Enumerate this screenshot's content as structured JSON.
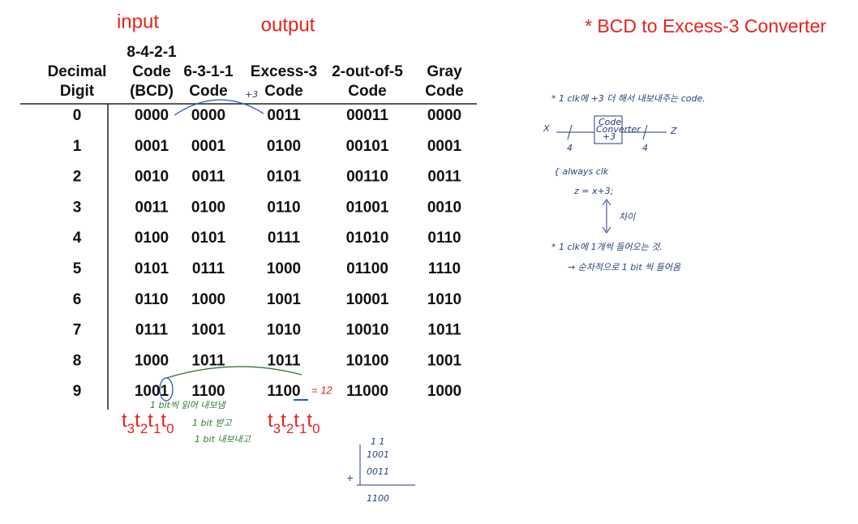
{
  "labels": {
    "input": "input",
    "output": "output"
  },
  "title": "* BCD to Excess-3 Converter",
  "table": {
    "headers": [
      [
        "Decimal",
        "Digit"
      ],
      [
        "8-4-2-1",
        "Code",
        "(BCD)"
      ],
      [
        "6-3-1-1",
        "Code"
      ],
      [
        "Excess-3",
        "Code"
      ],
      [
        "2-out-of-5",
        "Code"
      ],
      [
        "Gray",
        "Code"
      ]
    ],
    "rows": [
      [
        "0",
        "0000",
        "0000",
        "0011",
        "00011",
        "0000"
      ],
      [
        "1",
        "0001",
        "0001",
        "0100",
        "00101",
        "0001"
      ],
      [
        "2",
        "0010",
        "0011",
        "0101",
        "00110",
        "0011"
      ],
      [
        "3",
        "0011",
        "0100",
        "0110",
        "01001",
        "0010"
      ],
      [
        "4",
        "0100",
        "0101",
        "0111",
        "01010",
        "0110"
      ],
      [
        "5",
        "0101",
        "0111",
        "1000",
        "01100",
        "1110"
      ],
      [
        "6",
        "0110",
        "1000",
        "1001",
        "10001",
        "1010"
      ],
      [
        "7",
        "0111",
        "1001",
        "1010",
        "10010",
        "1011"
      ],
      [
        "8",
        "1000",
        "1011",
        "1011",
        "10100",
        "1001"
      ],
      [
        "9",
        "1001",
        "1100",
        "1100",
        "11000",
        "1000"
      ]
    ]
  },
  "bit_label": [
    {
      "base": "t",
      "sub": "3"
    },
    {
      "base": "t",
      "sub": "2"
    },
    {
      "base": "t",
      "sub": "1"
    },
    {
      "base": "t",
      "sub": "0"
    }
  ],
  "handwriting": {
    "plus3": "+3",
    "equals12": "= 12",
    "read_note": "1 bit씩 읽어 내보냄",
    "recv_note1": "1 bit 받고",
    "recv_note2": "1 bit 내보내고",
    "sum": {
      "carries": "1 1",
      "a": "1001",
      "op": "+",
      "b": "0011",
      "result": "1100"
    },
    "note1": "* 1 clk에 +3 더 해서 내보내주는 code.",
    "diagram": {
      "in": "X",
      "out": "Z",
      "in_width": "4",
      "out_width": "4",
      "box_line1": "Code",
      "box_line2": "Converter",
      "box_line3": "+3"
    },
    "always": "{ always clk",
    "assign": "z = x+3;",
    "diff": "차이",
    "note2": "* 1 clk에 1개씩 들어오는 것.",
    "note3": "→ 순차적으로 1 bit 씩 들어옴"
  }
}
